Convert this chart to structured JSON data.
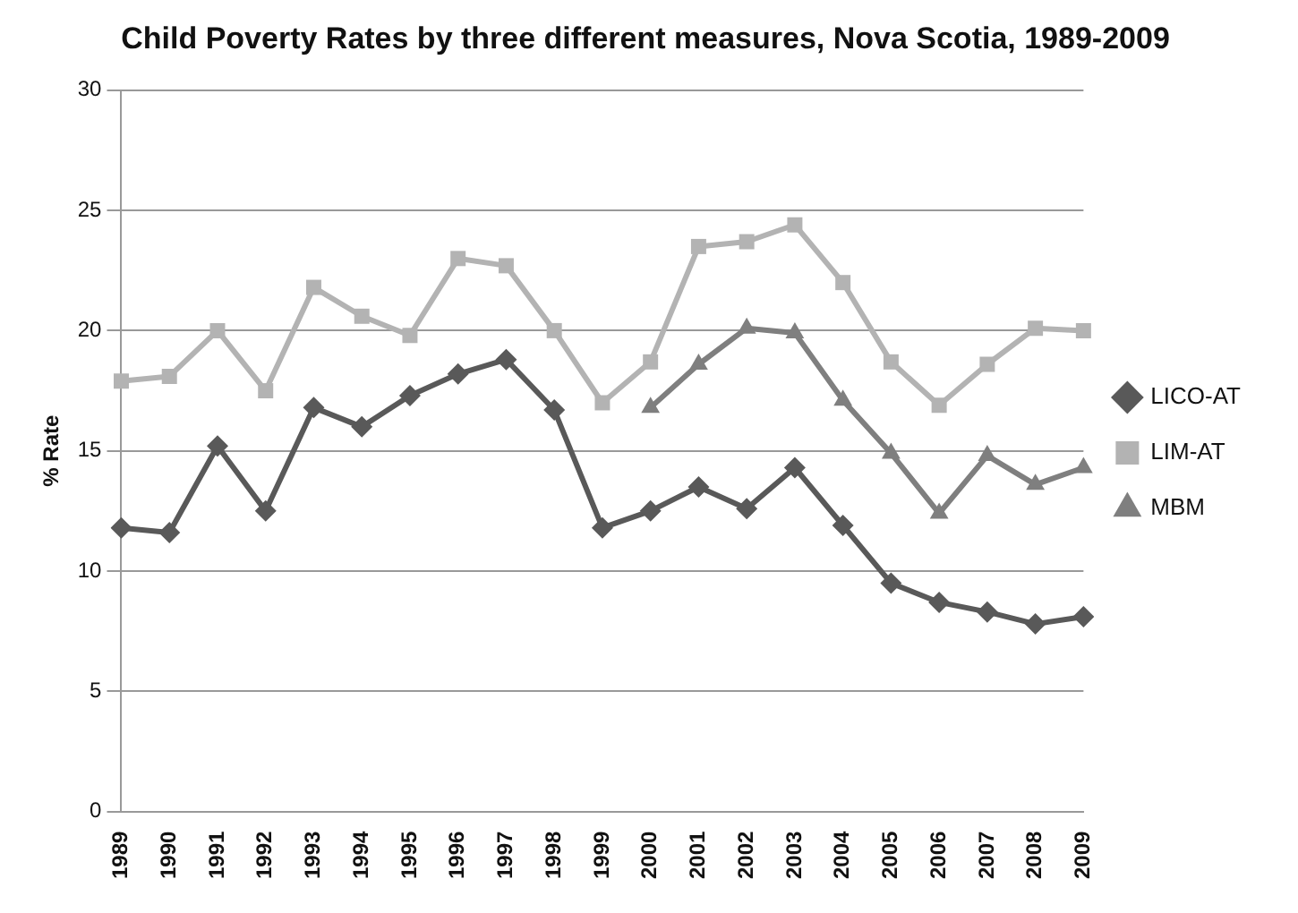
{
  "chart_data": {
    "type": "line",
    "title": "Child Poverty Rates by three different measures, Nova Scotia, 1989-2009",
    "ylabel": "% Rate",
    "categories": [
      "1989",
      "1990",
      "1991",
      "1992",
      "1993",
      "1994",
      "1995",
      "1996",
      "1997",
      "1998",
      "1999",
      "2000",
      "2001",
      "2002",
      "2003",
      "2004",
      "2005",
      "2006",
      "2007",
      "2008",
      "2009"
    ],
    "series": [
      {
        "name": "LICO-AT",
        "color": "#595959",
        "marker": "diamond",
        "values": [
          11.8,
          11.6,
          15.2,
          12.5,
          16.8,
          16.0,
          17.3,
          18.2,
          18.8,
          16.7,
          11.8,
          12.5,
          13.5,
          12.6,
          14.3,
          11.9,
          9.5,
          8.7,
          8.3,
          7.8,
          8.1
        ]
      },
      {
        "name": "LIM-AT",
        "color": "#b3b3b3",
        "marker": "square",
        "values": [
          17.9,
          18.1,
          20.0,
          17.5,
          21.8,
          20.6,
          19.8,
          23.0,
          22.7,
          20.0,
          17.0,
          18.7,
          23.5,
          23.7,
          24.4,
          22.0,
          18.7,
          16.9,
          18.6,
          20.1,
          20.0
        ]
      },
      {
        "name": "MBM",
        "color": "#7f7f7f",
        "marker": "triangle",
        "values": [
          null,
          null,
          null,
          null,
          null,
          null,
          null,
          null,
          null,
          null,
          null,
          16.8,
          18.6,
          20.1,
          19.9,
          17.1,
          14.9,
          12.4,
          14.8,
          13.6,
          14.3
        ]
      }
    ],
    "ylim": [
      0,
      30
    ],
    "yticks": [
      0,
      5,
      10,
      15,
      20,
      25,
      30
    ],
    "grid": "y",
    "legend": "right"
  }
}
